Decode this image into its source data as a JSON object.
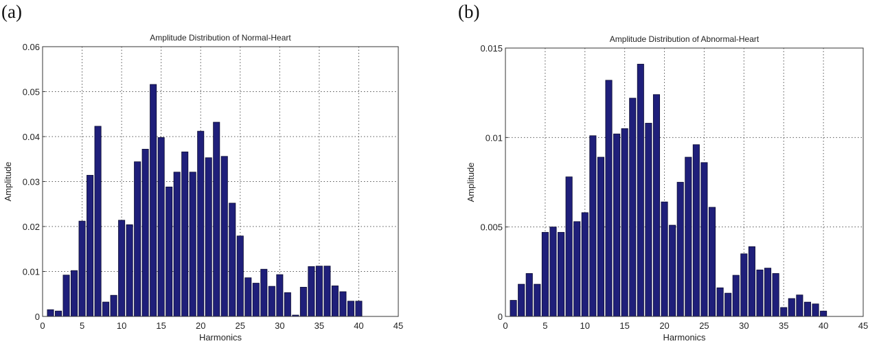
{
  "panels": [
    {
      "label": "(a)"
    },
    {
      "label": "(b)"
    }
  ],
  "chart_data": [
    {
      "type": "bar",
      "title": "Amplitude Distribution of Normal-Heart",
      "xlabel": "Harmonics",
      "ylabel": "Amplitude",
      "xlim": [
        0,
        45
      ],
      "ylim": [
        0,
        0.06
      ],
      "xticks": [
        "0",
        "5",
        "10",
        "15",
        "20",
        "25",
        "30",
        "35",
        "40",
        "45"
      ],
      "yticks": [
        "0",
        "0.01",
        "0.02",
        "0.03",
        "0.04",
        "0.05",
        "0.06"
      ],
      "grid": true,
      "bar_color": "#1f1f7a",
      "x": [
        1,
        2,
        3,
        4,
        5,
        6,
        7,
        8,
        9,
        10,
        11,
        12,
        13,
        14,
        15,
        16,
        17,
        18,
        19,
        20,
        21,
        22,
        23,
        24,
        25,
        26,
        27,
        28,
        29,
        30,
        31,
        32,
        33,
        34,
        35,
        36,
        37,
        38,
        39,
        40
      ],
      "values": [
        0.0015,
        0.0012,
        0.0092,
        0.0102,
        0.0212,
        0.0314,
        0.0423,
        0.0032,
        0.0047,
        0.0214,
        0.0204,
        0.0344,
        0.0372,
        0.0516,
        0.0398,
        0.0288,
        0.0321,
        0.0366,
        0.0321,
        0.0412,
        0.0353,
        0.0432,
        0.0356,
        0.0252,
        0.0179,
        0.0086,
        0.0074,
        0.0105,
        0.0067,
        0.0093,
        0.0053,
        0.0003,
        0.0065,
        0.0111,
        0.0112,
        0.0112,
        0.0068,
        0.0055,
        0.0034,
        0.0034
      ]
    },
    {
      "type": "bar",
      "title": "Amplitude Distribution of Abnormal-Heart",
      "xlabel": "Harmonics",
      "ylabel": "Amplitude",
      "xlim": [
        0,
        45
      ],
      "ylim": [
        0,
        0.015
      ],
      "xticks": [
        "0",
        "5",
        "10",
        "15",
        "20",
        "25",
        "30",
        "35",
        "40",
        "45"
      ],
      "yticks": [
        "0",
        "0.005",
        "0.01",
        "0.015"
      ],
      "grid": true,
      "bar_color": "#1f1f7a",
      "x": [
        1,
        2,
        3,
        4,
        5,
        6,
        7,
        8,
        9,
        10,
        11,
        12,
        13,
        14,
        15,
        16,
        17,
        18,
        19,
        20,
        21,
        22,
        23,
        24,
        25,
        26,
        27,
        28,
        29,
        30,
        31,
        32,
        33,
        34,
        35,
        36,
        37,
        38,
        39,
        40
      ],
      "values": [
        0.0009,
        0.0018,
        0.0024,
        0.0018,
        0.0047,
        0.005,
        0.0047,
        0.0078,
        0.0053,
        0.0058,
        0.0101,
        0.0089,
        0.0132,
        0.0102,
        0.0105,
        0.0122,
        0.0141,
        0.0108,
        0.0124,
        0.0064,
        0.0051,
        0.0075,
        0.0089,
        0.0096,
        0.0086,
        0.0061,
        0.0016,
        0.0013,
        0.0023,
        0.0035,
        0.0039,
        0.0026,
        0.0027,
        0.0024,
        0.0005,
        0.001,
        0.0012,
        0.0008,
        0.0007,
        0.0003
      ]
    }
  ]
}
